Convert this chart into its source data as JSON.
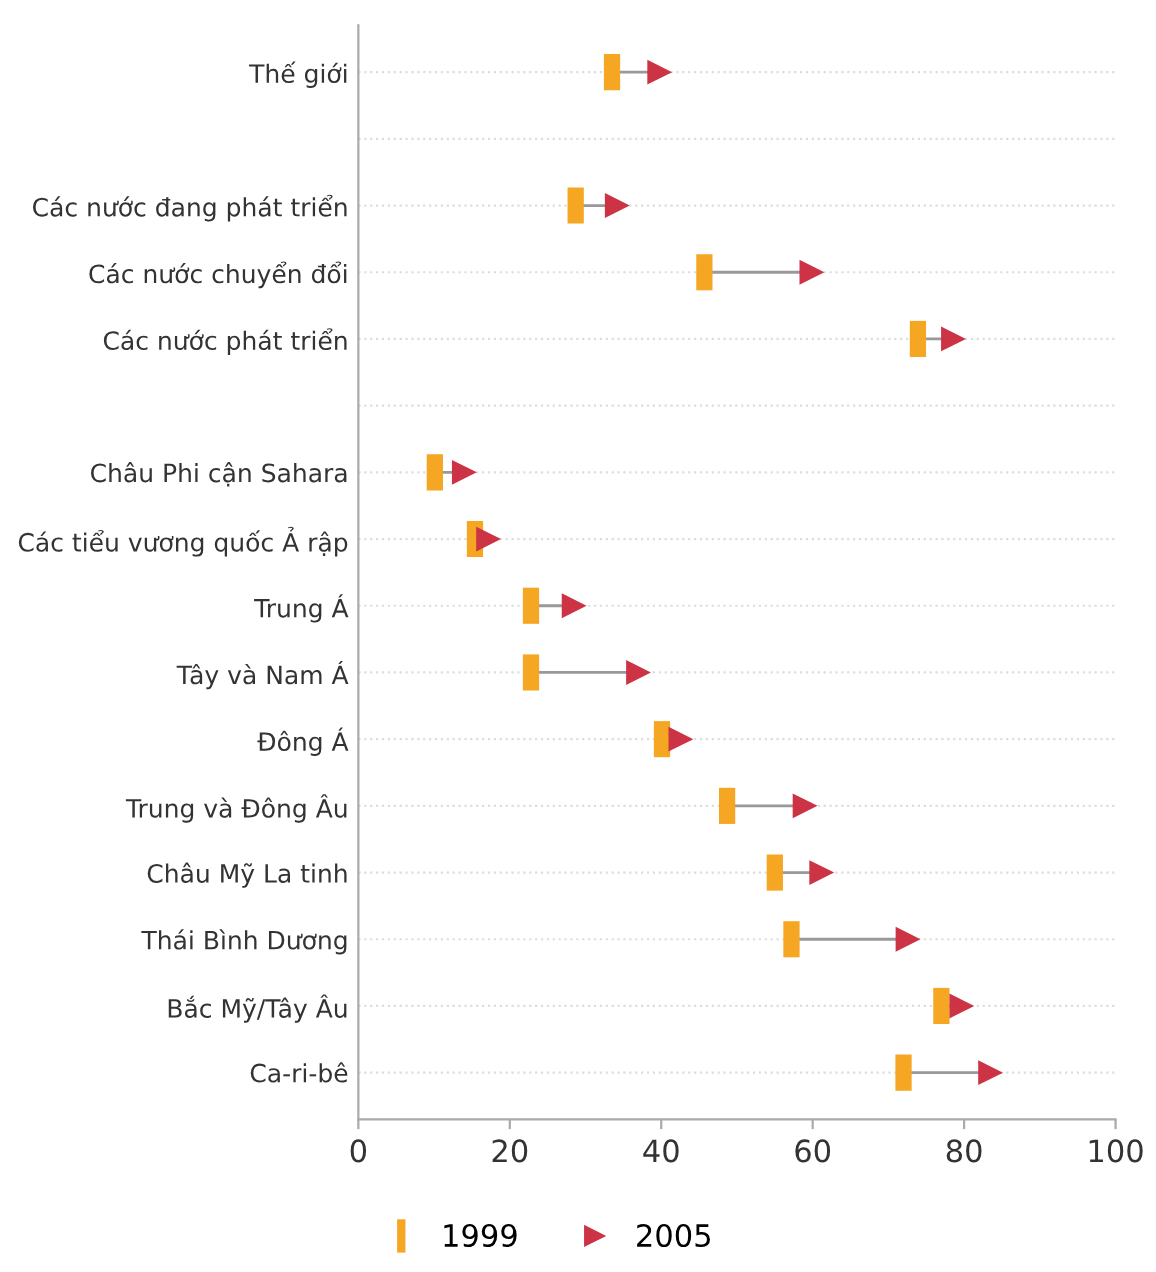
{
  "chart_data": {
    "type": "scatter",
    "orientation": "horizontal",
    "categories": [
      "Thế giới",
      null,
      "Các nước đang phát triển",
      "Các nước chuyển đổi",
      "Các nước phát triển",
      null,
      "Châu Phi cận Sahara",
      "Các tiểu vương quốc Ả rập",
      "Trung Á",
      "Tây và Nam Á",
      "Đông Á",
      "Trung và Đông Âu",
      "Châu Mỹ La tinh",
      "Thái Bình Dương",
      "Bắc Mỹ/Tây Âu",
      "Ca-ri-bê"
    ],
    "series": [
      {
        "name": "1999",
        "color": "#f5a623",
        "values": [
          33.5,
          null,
          28.7,
          45.7,
          73.9,
          null,
          10.1,
          15.4,
          22.8,
          22.8,
          40.1,
          48.7,
          55.0,
          57.2,
          77.0,
          72.0
        ]
      },
      {
        "name": "2005",
        "color": "#cc3344",
        "values": [
          39.8,
          null,
          34.2,
          59.9,
          78.6,
          null,
          14.0,
          17.2,
          28.5,
          37.0,
          42.6,
          59.0,
          61.2,
          72.6,
          79.7,
          83.5
        ]
      }
    ],
    "xlim": [
      0,
      100
    ],
    "xticks": [
      0,
      20,
      40,
      60,
      80,
      100
    ],
    "grid": "y",
    "legend": "bottom"
  }
}
